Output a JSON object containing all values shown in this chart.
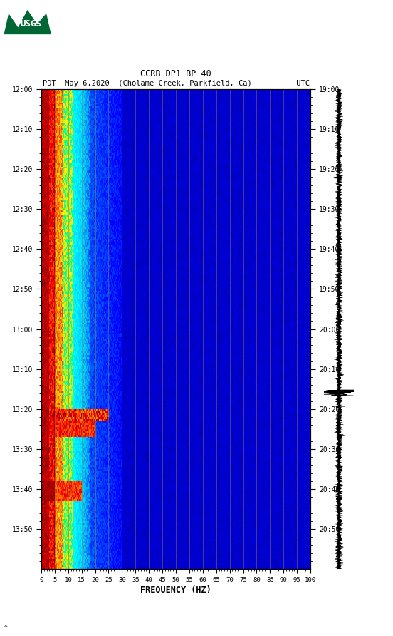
{
  "title_line1": "CCRB DP1 BP 40",
  "title_line2_left": "PDT  May 6,2020  (Cholame Creek, Parkfield, Ca)",
  "title_line2_right": "UTC",
  "freq_min": 0,
  "freq_max": 100,
  "freq_ticks": [
    0,
    5,
    10,
    15,
    20,
    25,
    30,
    35,
    40,
    45,
    50,
    55,
    60,
    65,
    70,
    75,
    80,
    85,
    90,
    95,
    100
  ],
  "freq_label": "FREQUENCY (HZ)",
  "time_left_labels": [
    "12:00",
    "12:10",
    "12:20",
    "12:30",
    "12:40",
    "12:50",
    "13:00",
    "13:10",
    "13:20",
    "13:30",
    "13:40",
    "13:50"
  ],
  "time_right_labels": [
    "19:00",
    "19:10",
    "19:20",
    "19:30",
    "19:40",
    "19:50",
    "20:00",
    "20:10",
    "20:20",
    "20:30",
    "20:40",
    "20:50"
  ],
  "n_time_steps": 240,
  "n_freq_steps": 400,
  "background_color": "#ffffff",
  "fig_width": 5.52,
  "fig_height": 8.92,
  "usgs_color": "#006633",
  "grid_line_color": "#8B7355",
  "grid_freq_step": 5,
  "cmap_colors": [
    [
      0.0,
      "#00008B"
    ],
    [
      0.12,
      "#0000FF"
    ],
    [
      0.3,
      "#00BFFF"
    ],
    [
      0.45,
      "#00FFFF"
    ],
    [
      0.55,
      "#00FF80"
    ],
    [
      0.65,
      "#FFFF00"
    ],
    [
      0.78,
      "#FF8C00"
    ],
    [
      0.9,
      "#FF0000"
    ],
    [
      1.0,
      "#8B0000"
    ]
  ]
}
